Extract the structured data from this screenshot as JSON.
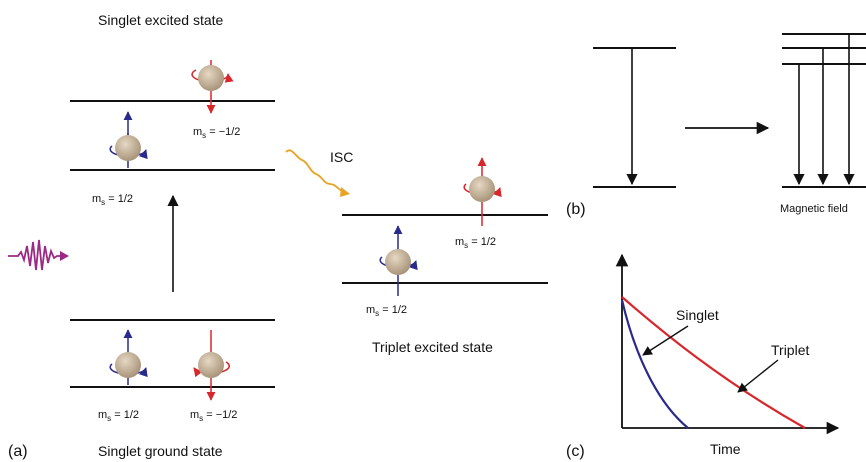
{
  "panel_a": {
    "label": "(a)",
    "singlet_excited_title": "Singlet excited state",
    "singlet_ground_title": "Singlet ground state",
    "triplet_excited_title": "Triplet excited state",
    "isc_label": "ISC",
    "spin_labels": {
      "se_top_prefix": "m",
      "se_top_sub": "s",
      "se_top_value": " = −1/2",
      "se_bottom_prefix": "m",
      "se_bottom_sub": "s",
      "se_bottom_value": " = 1/2",
      "gs_left_prefix": "m",
      "gs_left_sub": "s",
      "gs_left_value": " = 1/2",
      "gs_right_prefix": "m",
      "gs_right_sub": "s",
      "gs_right_value": " = −1/2",
      "te_top_prefix": "m",
      "te_top_sub": "s",
      "te_top_value": " = 1/2",
      "te_bottom_prefix": "m",
      "te_bottom_sub": "s",
      "te_bottom_value": " = 1/2"
    }
  },
  "panel_b": {
    "label": "(b)",
    "field_label": "Magnetic field"
  },
  "panel_c": {
    "label": "(c)",
    "x_axis_label": "Time",
    "singlet_label": "Singlet",
    "triplet_label": "Triplet"
  },
  "colors": {
    "spin_up": "#2a2a8c",
    "spin_down": "#d8262a",
    "sphere": "#c8b59a",
    "photon": "#9b2a86",
    "isc_wave": "#e8a323",
    "singlet_curve": "#2a2a8c",
    "triplet_curve": "#d8262a"
  }
}
